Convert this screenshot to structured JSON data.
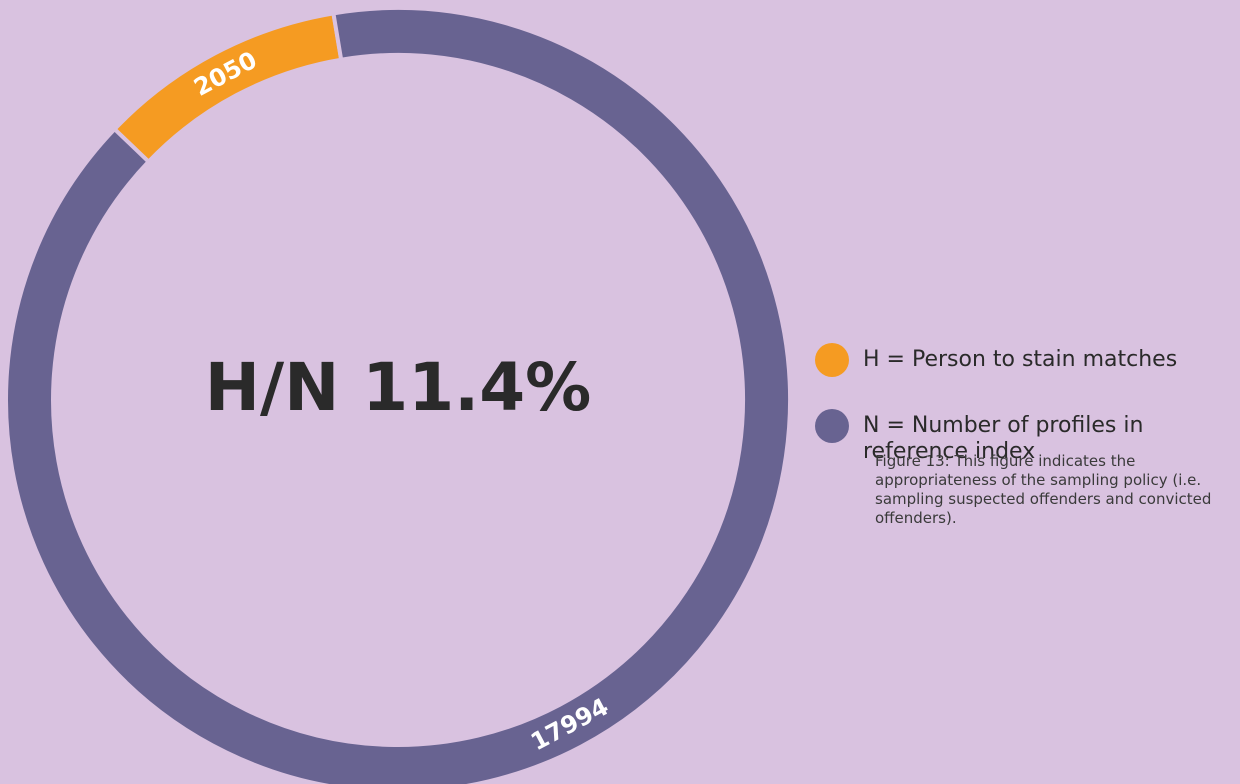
{
  "chart_data": {
    "type": "pie",
    "donut": true,
    "categories": [
      "H = Person to stain matches",
      "N = Number of profiles in reference index"
    ],
    "values": [
      2050,
      17994
    ],
    "colors": [
      "#f59b22",
      "#686391"
    ],
    "center_label": "H/N 11.4%",
    "caption": "Figure 13: This figure indicates the appropriateness of the sampling policy (i.e. sampling suspected offenders and convicted offenders)."
  }
}
